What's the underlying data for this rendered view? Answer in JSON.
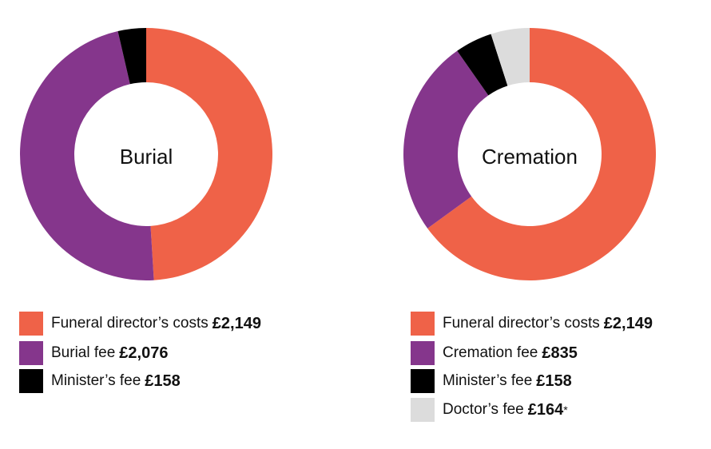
{
  "colors": {
    "funeral_director": "#EF6248",
    "fee": "#85368C",
    "minister": "#000000",
    "doctor": "#DCDCDC"
  },
  "chart_data": [
    {
      "type": "pie",
      "title": "Burial",
      "slices": [
        {
          "key": "funeral_director",
          "label": "Funeral director’s costs",
          "value": 2149,
          "display": "£2,149"
        },
        {
          "key": "fee",
          "label": "Burial fee",
          "value": 2076,
          "display": "£2,076"
        },
        {
          "key": "minister",
          "label": "Minister’s fee",
          "value": 158,
          "display": "£158"
        }
      ]
    },
    {
      "type": "pie",
      "title": "Cremation",
      "slices": [
        {
          "key": "funeral_director",
          "label": "Funeral director’s costs",
          "value": 2149,
          "display": "£2,149"
        },
        {
          "key": "fee",
          "label": "Cremation fee",
          "value": 835,
          "display": "£835"
        },
        {
          "key": "minister",
          "label": "Minister’s fee",
          "value": 158,
          "display": "£158"
        },
        {
          "key": "doctor",
          "label": "Doctor’s fee",
          "value": 164,
          "display": "£164",
          "suffix": "*"
        }
      ]
    }
  ]
}
